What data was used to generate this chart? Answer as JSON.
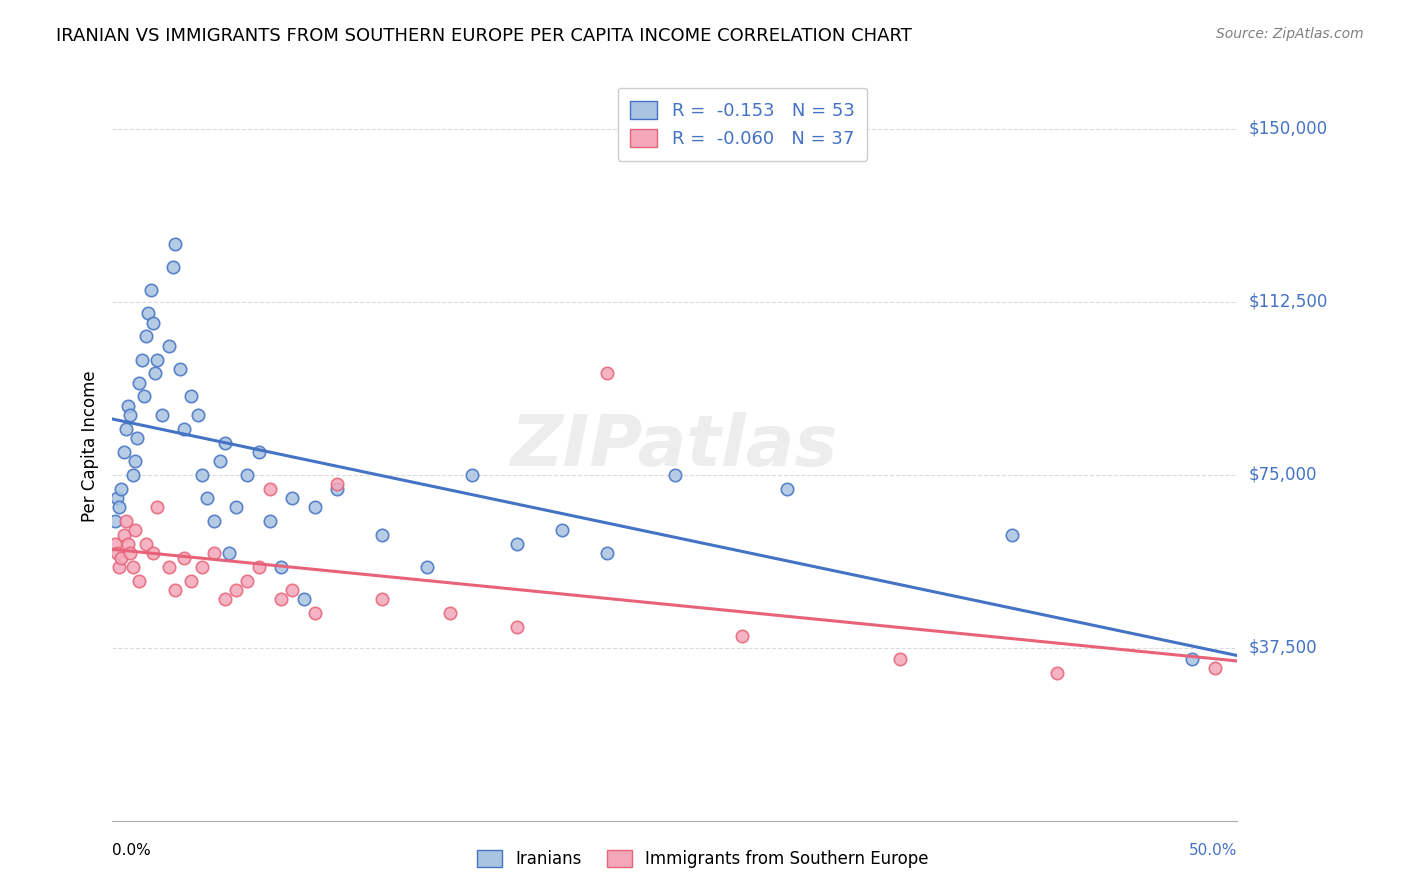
{
  "title": "IRANIAN VS IMMIGRANTS FROM SOUTHERN EUROPE PER CAPITA INCOME CORRELATION CHART",
  "source": "Source: ZipAtlas.com",
  "ylabel": "Per Capita Income",
  "background_color": "#ffffff",
  "grid_color": "#cccccc",
  "iranians_color": "#a8c4e0",
  "iranians_line_color": "#4472c4",
  "southern_europe_color": "#f4a7b9",
  "southern_europe_line_color": "#e8637a",
  "legend_text_color": "#4472c4",
  "watermark": "ZIPatlas",
  "R_iranians": -0.153,
  "N_iranians": 53,
  "R_southern": -0.06,
  "N_southern": 37,
  "iranians_x": [
    0.001,
    0.002,
    0.003,
    0.004,
    0.005,
    0.006,
    0.007,
    0.008,
    0.009,
    0.01,
    0.011,
    0.012,
    0.013,
    0.014,
    0.015,
    0.016,
    0.017,
    0.018,
    0.019,
    0.02,
    0.022,
    0.025,
    0.027,
    0.028,
    0.03,
    0.032,
    0.035,
    0.038,
    0.04,
    0.042,
    0.045,
    0.048,
    0.05,
    0.052,
    0.055,
    0.06,
    0.065,
    0.07,
    0.075,
    0.08,
    0.085,
    0.09,
    0.1,
    0.12,
    0.14,
    0.16,
    0.18,
    0.2,
    0.22,
    0.25,
    0.3,
    0.4,
    0.48
  ],
  "iranians_y": [
    65000,
    70000,
    68000,
    72000,
    80000,
    85000,
    90000,
    88000,
    75000,
    78000,
    83000,
    95000,
    100000,
    92000,
    105000,
    110000,
    115000,
    108000,
    97000,
    100000,
    88000,
    103000,
    120000,
    125000,
    98000,
    85000,
    92000,
    88000,
    75000,
    70000,
    65000,
    78000,
    82000,
    58000,
    68000,
    75000,
    80000,
    65000,
    55000,
    70000,
    48000,
    68000,
    72000,
    62000,
    55000,
    75000,
    60000,
    63000,
    58000,
    75000,
    72000,
    62000,
    35000
  ],
  "southern_x": [
    0.001,
    0.002,
    0.003,
    0.004,
    0.005,
    0.006,
    0.007,
    0.008,
    0.009,
    0.01,
    0.012,
    0.015,
    0.018,
    0.02,
    0.025,
    0.028,
    0.032,
    0.035,
    0.04,
    0.045,
    0.05,
    0.055,
    0.06,
    0.065,
    0.07,
    0.075,
    0.08,
    0.09,
    0.1,
    0.12,
    0.15,
    0.18,
    0.22,
    0.28,
    0.35,
    0.42,
    0.49
  ],
  "southern_y": [
    60000,
    58000,
    55000,
    57000,
    62000,
    65000,
    60000,
    58000,
    55000,
    63000,
    52000,
    60000,
    58000,
    68000,
    55000,
    50000,
    57000,
    52000,
    55000,
    58000,
    48000,
    50000,
    52000,
    55000,
    72000,
    48000,
    50000,
    45000,
    73000,
    48000,
    45000,
    42000,
    97000,
    40000,
    35000,
    32000,
    33000
  ],
  "marker_size": 80,
  "yticks": [
    0,
    37500,
    75000,
    112500,
    150000
  ],
  "xmin": 0.0,
  "xmax": 0.5,
  "ymin": 0,
  "ymax": 162500
}
